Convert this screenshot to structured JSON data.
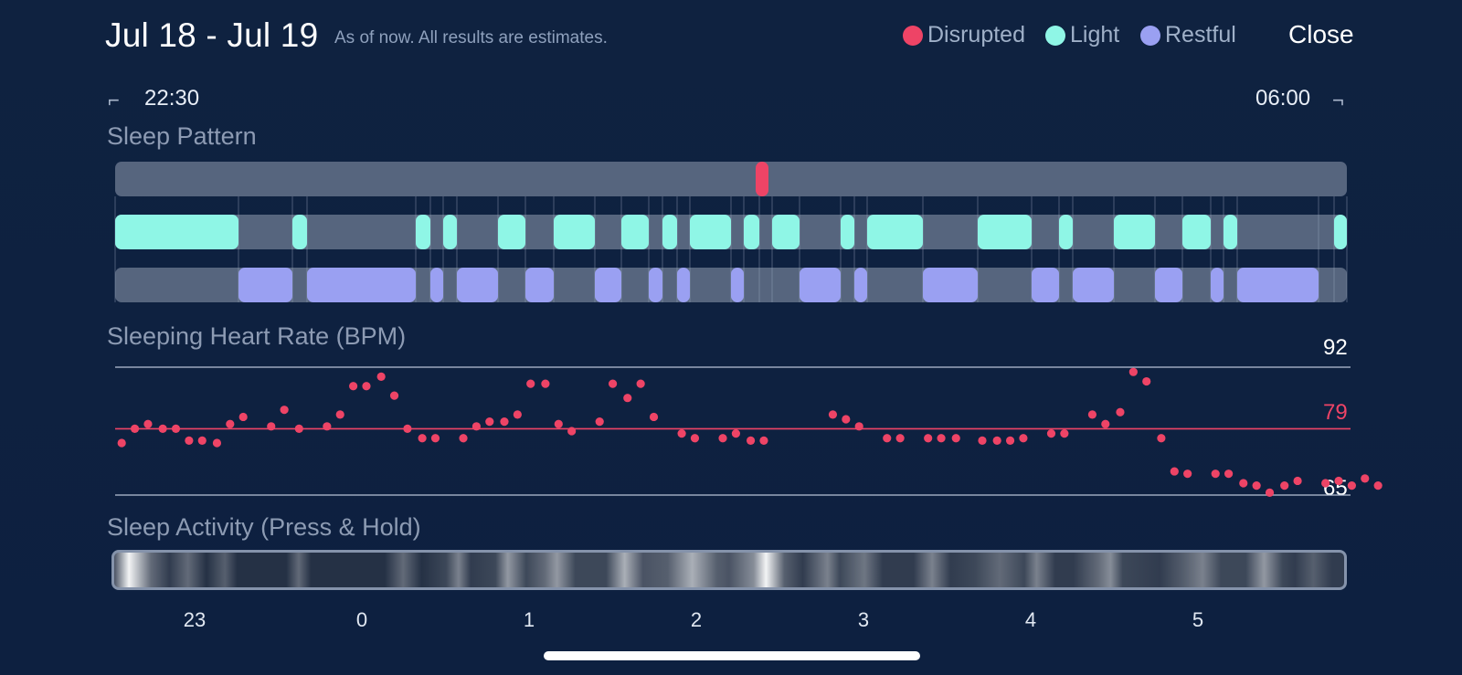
{
  "header": {
    "title": "Jul 18 - Jul 19",
    "subtitle": "As of now. All results are estimates.",
    "close_label": "Close"
  },
  "legend": [
    {
      "label": "Disrupted",
      "color": "#ee4466"
    },
    {
      "label": "Light",
      "color": "#8ff6e6"
    },
    {
      "label": "Restful",
      "color": "#9aa0f2"
    }
  ],
  "time_range": {
    "start": "22:30",
    "end": "06:00"
  },
  "sections": {
    "sleep_pattern": "Sleep Pattern",
    "heart_rate": "Sleeping Heart Rate (BPM)",
    "activity": "Sleep Activity (Press & Hold)"
  },
  "heart_scale": {
    "max": "92",
    "avg": "79",
    "min": "65"
  },
  "axis_ticks": [
    "23",
    "0",
    "1",
    "2",
    "3",
    "4",
    "5"
  ],
  "chart_data": [
    {
      "type": "bar",
      "title": "Sleep Pattern",
      "x_unit": "hours since 22:30",
      "xlim": [
        0,
        7.5
      ],
      "series": [
        {
          "name": "Disrupted",
          "intervals": [
            [
              3.9,
              3.98
            ]
          ]
        },
        {
          "name": "Light",
          "intervals": [
            [
              0.0,
              0.75
            ],
            [
              1.08,
              1.17
            ],
            [
              1.83,
              1.92
            ],
            [
              2.0,
              2.08
            ],
            [
              2.33,
              2.5
            ],
            [
              2.67,
              2.92
            ],
            [
              3.08,
              3.25
            ],
            [
              3.33,
              3.42
            ],
            [
              3.5,
              3.75
            ],
            [
              3.83,
              3.92
            ],
            [
              4.0,
              4.17
            ],
            [
              4.42,
              4.5
            ],
            [
              4.58,
              4.92
            ],
            [
              5.25,
              5.58
            ],
            [
              5.75,
              5.83
            ],
            [
              6.08,
              6.33
            ],
            [
              6.5,
              6.67
            ],
            [
              6.75,
              6.83
            ],
            [
              7.42,
              7.5
            ]
          ]
        },
        {
          "name": "Restful",
          "intervals": [
            [
              0.75,
              1.08
            ],
            [
              1.17,
              1.83
            ],
            [
              1.92,
              2.0
            ],
            [
              2.08,
              2.33
            ],
            [
              2.5,
              2.67
            ],
            [
              2.92,
              3.08
            ],
            [
              3.25,
              3.33
            ],
            [
              3.42,
              3.5
            ],
            [
              3.75,
              3.83
            ],
            [
              4.17,
              4.42
            ],
            [
              4.5,
              4.58
            ],
            [
              4.92,
              5.25
            ],
            [
              5.58,
              5.75
            ],
            [
              5.83,
              6.08
            ],
            [
              6.33,
              6.5
            ],
            [
              6.67,
              6.75
            ],
            [
              6.83,
              7.33
            ]
          ]
        }
      ]
    },
    {
      "type": "scatter",
      "title": "Sleeping Heart Rate (BPM)",
      "ylim": [
        65,
        92
      ],
      "reference_lines": [
        92,
        79,
        65
      ],
      "x_unit": "hours since 22:30",
      "points": [
        [
          0.04,
          76
        ],
        [
          0.12,
          79
        ],
        [
          0.2,
          80
        ],
        [
          0.29,
          79
        ],
        [
          0.37,
          79
        ],
        [
          0.45,
          76.5
        ],
        [
          0.53,
          76.5
        ],
        [
          0.62,
          76
        ],
        [
          0.7,
          80
        ],
        [
          0.78,
          81.5
        ],
        [
          0.95,
          79.5
        ],
        [
          1.03,
          83
        ],
        [
          1.12,
          79
        ],
        [
          1.29,
          79.5
        ],
        [
          1.37,
          82
        ],
        [
          1.45,
          88
        ],
        [
          1.53,
          88
        ],
        [
          1.62,
          90
        ],
        [
          1.7,
          86
        ],
        [
          1.78,
          79
        ],
        [
          1.87,
          77
        ],
        [
          1.95,
          77
        ],
        [
          2.12,
          77
        ],
        [
          2.2,
          79.5
        ],
        [
          2.28,
          80.5
        ],
        [
          2.37,
          80.5
        ],
        [
          2.45,
          82
        ],
        [
          2.53,
          88.5
        ],
        [
          2.62,
          88.5
        ],
        [
          2.7,
          80
        ],
        [
          2.78,
          78.5
        ],
        [
          2.95,
          80.5
        ],
        [
          3.03,
          88.5
        ],
        [
          3.12,
          85.5
        ],
        [
          3.2,
          88.5
        ],
        [
          3.28,
          81.5
        ],
        [
          3.45,
          78
        ],
        [
          3.53,
          77
        ],
        [
          3.7,
          77
        ],
        [
          3.78,
          78
        ],
        [
          3.87,
          76.5
        ],
        [
          3.95,
          76.5
        ],
        [
          4.37,
          82
        ],
        [
          4.45,
          81
        ],
        [
          4.53,
          79.5
        ],
        [
          4.7,
          77
        ],
        [
          4.78,
          77
        ],
        [
          4.95,
          77
        ],
        [
          5.03,
          77
        ],
        [
          5.12,
          77
        ],
        [
          5.28,
          76.5
        ],
        [
          5.37,
          76.5
        ],
        [
          5.45,
          76.5
        ],
        [
          5.53,
          77
        ],
        [
          5.7,
          78
        ],
        [
          5.78,
          78
        ],
        [
          5.95,
          82
        ],
        [
          6.03,
          80
        ],
        [
          6.12,
          82.5
        ],
        [
          6.2,
          91
        ],
        [
          6.28,
          89
        ],
        [
          6.37,
          77
        ],
        [
          6.45,
          70
        ],
        [
          6.53,
          69.5
        ],
        [
          6.7,
          69.5
        ],
        [
          6.78,
          69.5
        ],
        [
          6.87,
          67.5
        ],
        [
          6.95,
          67
        ],
        [
          7.03,
          65.5
        ],
        [
          7.12,
          67
        ],
        [
          7.2,
          68
        ],
        [
          7.37,
          67.5
        ],
        [
          7.45,
          68
        ],
        [
          7.53,
          67
        ],
        [
          7.61,
          68.5
        ],
        [
          7.69,
          67
        ]
      ]
    }
  ]
}
